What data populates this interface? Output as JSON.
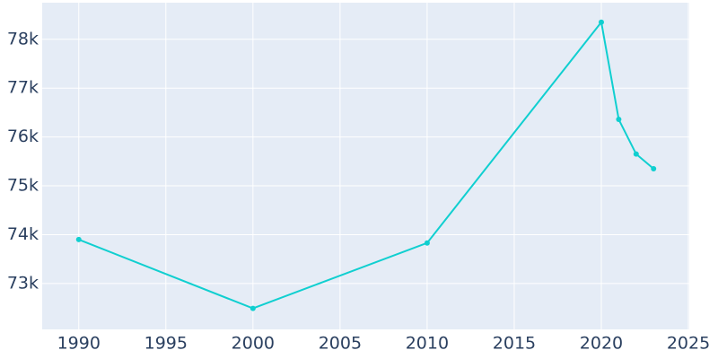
{
  "chart_data": {
    "type": "line",
    "x": [
      1990,
      2000,
      2010,
      2020,
      2021,
      2022,
      2023
    ],
    "series": [
      {
        "color": "#10cfd0",
        "values": [
          73900,
          72490,
          73830,
          78350,
          76360,
          75650,
          75350
        ]
      }
    ],
    "xlim": [
      1987.9,
      2025.05
    ],
    "ylim": [
      72060,
      78750
    ],
    "xticks": [
      1990,
      1995,
      2000,
      2005,
      2010,
      2015,
      2020,
      2025
    ],
    "yticks": [
      {
        "value": 73000,
        "label": "73k"
      },
      {
        "value": 74000,
        "label": "74k"
      },
      {
        "value": 75000,
        "label": "75k"
      },
      {
        "value": 76000,
        "label": "76k"
      },
      {
        "value": 77000,
        "label": "77k"
      },
      {
        "value": 78000,
        "label": "78k"
      }
    ],
    "grid": true
  }
}
